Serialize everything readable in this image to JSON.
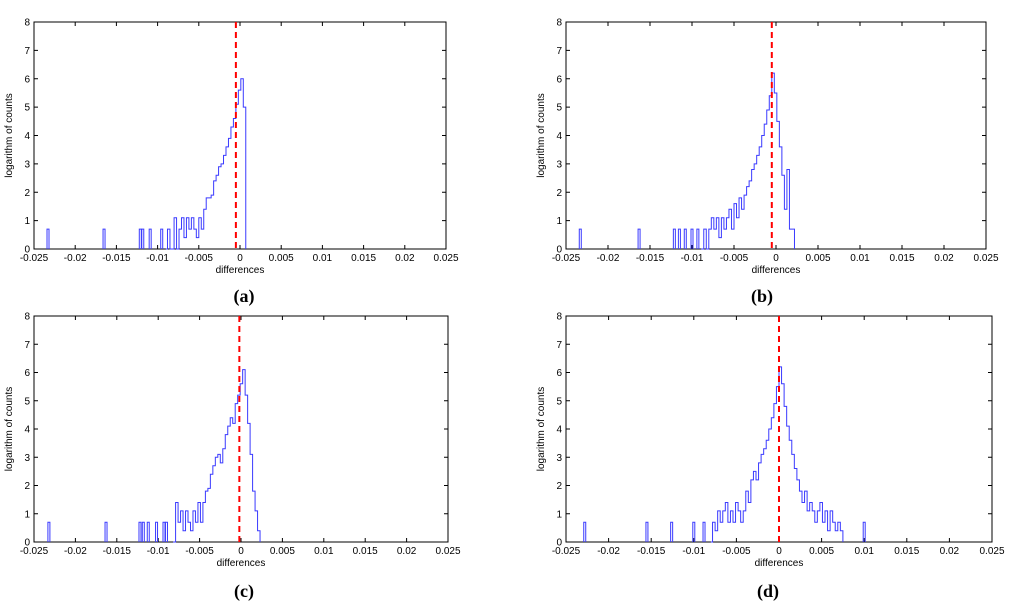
{
  "chart_data": [
    {
      "type": "histogram",
      "panel_label": "(a)",
      "xlabel": "differences",
      "ylabel": "logarithm of counts",
      "xlim": [
        -0.025,
        0.025
      ],
      "ylim": [
        0,
        8
      ],
      "xticks": [
        "-0.025",
        "-0.02",
        "-0.015",
        "-0.01",
        "-0.005",
        "0",
        "0.005",
        "0.01",
        "0.015",
        "0.02",
        "0.025"
      ],
      "yticks": [
        "0",
        "1",
        "2",
        "3",
        "4",
        "5",
        "6",
        "7",
        "8"
      ],
      "reference_line_x": -0.0005,
      "outliers": [
        [
          -0.0233,
          0.7
        ],
        [
          -0.0165,
          0.7
        ],
        [
          -0.0121,
          0.7
        ],
        [
          -0.0118,
          0.7
        ],
        [
          -0.0109,
          0.7
        ],
        [
          -0.0095,
          0.7
        ]
      ],
      "envelope": [
        [
          -0.009,
          0
        ],
        [
          -0.0088,
          0.7
        ],
        [
          -0.0085,
          0
        ],
        [
          -0.008,
          1.1
        ],
        [
          -0.0077,
          0
        ],
        [
          -0.0074,
          0.7
        ],
        [
          -0.0071,
          1.1
        ],
        [
          -0.0068,
          0.4
        ],
        [
          -0.0065,
          1.1
        ],
        [
          -0.0062,
          0.7
        ],
        [
          -0.0059,
          1.1
        ],
        [
          -0.0056,
          0.7
        ],
        [
          -0.0053,
          0.4
        ],
        [
          -0.005,
          1.1
        ],
        [
          -0.0047,
          0.7
        ],
        [
          -0.0044,
          1.4
        ],
        [
          -0.0041,
          1.8
        ],
        [
          -0.0038,
          1.8
        ],
        [
          -0.0035,
          1.9
        ],
        [
          -0.0032,
          2.4
        ],
        [
          -0.0029,
          2.6
        ],
        [
          -0.0026,
          2.9
        ],
        [
          -0.0023,
          3.0
        ],
        [
          -0.002,
          3.3
        ],
        [
          -0.0017,
          3.6
        ],
        [
          -0.0014,
          3.9
        ],
        [
          -0.0011,
          4.3
        ],
        [
          -0.0008,
          4.6
        ],
        [
          -0.0005,
          5.1
        ],
        [
          -0.0002,
          5.6
        ],
        [
          0.0001,
          6.0
        ],
        [
          0.0004,
          5.0
        ],
        [
          0.0007,
          0
        ]
      ]
    },
    {
      "type": "histogram",
      "panel_label": "(b)",
      "xlabel": "differences",
      "ylabel": "logarithm of counts",
      "xlim": [
        -0.025,
        0.025
      ],
      "ylim": [
        0,
        8
      ],
      "xticks": [
        "-0.025",
        "-0.02",
        "-0.015",
        "-0.01",
        "-0.005",
        "0",
        "0.005",
        "0.01",
        "0.015",
        "0.02",
        "0.025"
      ],
      "yticks": [
        "0",
        "1",
        "2",
        "3",
        "4",
        "5",
        "6",
        "7",
        "8"
      ],
      "reference_line_x": -0.0005,
      "outliers": [
        [
          -0.0233,
          0.7
        ],
        [
          -0.0163,
          0.7
        ],
        [
          -0.0121,
          0.7
        ],
        [
          -0.0115,
          0.7
        ],
        [
          -0.0108,
          0.7
        ],
        [
          -0.01,
          0.7
        ],
        [
          -0.0093,
          0.7
        ]
      ],
      "envelope": [
        [
          -0.0089,
          0
        ],
        [
          -0.0086,
          0.7
        ],
        [
          -0.0083,
          0
        ],
        [
          -0.008,
          0.7
        ],
        [
          -0.0077,
          1.1
        ],
        [
          -0.0074,
          0.7
        ],
        [
          -0.0071,
          1.1
        ],
        [
          -0.0068,
          0.4
        ],
        [
          -0.0065,
          1.1
        ],
        [
          -0.0062,
          0.7
        ],
        [
          -0.0059,
          1.1
        ],
        [
          -0.0056,
          1.4
        ],
        [
          -0.0053,
          0.7
        ],
        [
          -0.005,
          1.6
        ],
        [
          -0.0047,
          1.1
        ],
        [
          -0.0044,
          1.8
        ],
        [
          -0.0041,
          1.4
        ],
        [
          -0.0038,
          1.9
        ],
        [
          -0.0035,
          2.2
        ],
        [
          -0.0032,
          2.4
        ],
        [
          -0.0029,
          2.8
        ],
        [
          -0.0026,
          3.0
        ],
        [
          -0.0023,
          3.3
        ],
        [
          -0.002,
          3.6
        ],
        [
          -0.0017,
          4.0
        ],
        [
          -0.0014,
          4.4
        ],
        [
          -0.0011,
          4.9
        ],
        [
          -0.0008,
          5.4
        ],
        [
          -0.0005,
          6.2
        ],
        [
          -0.0002,
          5.5
        ],
        [
          0.0001,
          4.5
        ],
        [
          0.0004,
          3.6
        ],
        [
          0.0007,
          2.6
        ],
        [
          0.001,
          1.4
        ],
        [
          0.0013,
          2.8
        ],
        [
          0.0016,
          0.7
        ],
        [
          0.0019,
          0.7
        ],
        [
          0.0022,
          0
        ]
      ]
    },
    {
      "type": "histogram",
      "panel_label": "(c)",
      "xlabel": "differences",
      "ylabel": "logarithm of counts",
      "xlim": [
        -0.025,
        0.025
      ],
      "ylim": [
        0,
        8
      ],
      "xticks": [
        "-0.025",
        "-0.02",
        "-0.015",
        "-0.01",
        "-0.005",
        "0",
        "0.005",
        "0.01",
        "0.015",
        "0.02",
        "0.025"
      ],
      "yticks": [
        "0",
        "1",
        "2",
        "3",
        "4",
        "5",
        "6",
        "7",
        "8"
      ],
      "reference_line_x": -0.0002,
      "outliers": [
        [
          -0.0232,
          0.7
        ],
        [
          -0.0163,
          0.7
        ],
        [
          -0.0122,
          0.7
        ],
        [
          -0.0118,
          0.7
        ],
        [
          -0.0112,
          0.7
        ],
        [
          -0.0102,
          0.7
        ],
        [
          -0.0093,
          0.7
        ],
        [
          -0.009,
          0.7
        ]
      ],
      "envelope": [
        [
          -0.0082,
          0
        ],
        [
          -0.0079,
          1.4
        ],
        [
          -0.0076,
          0.7
        ],
        [
          -0.0073,
          1.1
        ],
        [
          -0.007,
          0.4
        ],
        [
          -0.0067,
          1.1
        ],
        [
          -0.0064,
          0.7
        ],
        [
          -0.0061,
          0.4
        ],
        [
          -0.0058,
          1.1
        ],
        [
          -0.0055,
          0.7
        ],
        [
          -0.0052,
          1.4
        ],
        [
          -0.0049,
          0.7
        ],
        [
          -0.0046,
          1.4
        ],
        [
          -0.0043,
          1.8
        ],
        [
          -0.004,
          1.9
        ],
        [
          -0.0037,
          2.4
        ],
        [
          -0.0034,
          2.7
        ],
        [
          -0.0031,
          3.0
        ],
        [
          -0.0028,
          3.1
        ],
        [
          -0.0025,
          2.8
        ],
        [
          -0.0022,
          3.3
        ],
        [
          -0.0019,
          3.8
        ],
        [
          -0.0016,
          4.1
        ],
        [
          -0.0013,
          4.4
        ],
        [
          -0.001,
          4.2
        ],
        [
          -0.0007,
          4.9
        ],
        [
          -0.0004,
          5.2
        ],
        [
          -0.0001,
          5.6
        ],
        [
          0.0002,
          6.1
        ],
        [
          0.0005,
          5.2
        ],
        [
          0.0008,
          4.2
        ],
        [
          0.0011,
          3.1
        ],
        [
          0.0014,
          1.8
        ],
        [
          0.0017,
          1.1
        ],
        [
          0.002,
          0.4
        ],
        [
          0.0023,
          0
        ]
      ]
    },
    {
      "type": "histogram",
      "panel_label": "(d)",
      "xlabel": "differences",
      "ylabel": "logarithm of counts",
      "xlim": [
        -0.025,
        0.025
      ],
      "ylim": [
        0,
        8
      ],
      "xticks": [
        "-0.025",
        "-0.02",
        "-0.015",
        "-0.01",
        "-0.005",
        "0",
        "0.005",
        "0.01",
        "0.015",
        "0.02",
        "0.025"
      ],
      "yticks": [
        "0",
        "1",
        "2",
        "3",
        "4",
        "5",
        "6",
        "7",
        "8"
      ],
      "reference_line_x": 0.0,
      "outliers": [
        [
          -0.0228,
          0.7
        ],
        [
          -0.0155,
          0.7
        ],
        [
          -0.0126,
          0.7
        ],
        [
          -0.01,
          0.7
        ],
        [
          -0.0088,
          0.7
        ],
        [
          0.01,
          0.7
        ]
      ],
      "envelope": [
        [
          -0.008,
          0
        ],
        [
          -0.0078,
          0.7
        ],
        [
          -0.0075,
          0.4
        ],
        [
          -0.0072,
          1.1
        ],
        [
          -0.0069,
          0.7
        ],
        [
          -0.0066,
          1.1
        ],
        [
          -0.0063,
          1.4
        ],
        [
          -0.006,
          0.7
        ],
        [
          -0.0057,
          1.1
        ],
        [
          -0.0054,
          0.7
        ],
        [
          -0.0051,
          1.4
        ],
        [
          -0.0048,
          1.1
        ],
        [
          -0.0045,
          0.7
        ],
        [
          -0.0042,
          1.1
        ],
        [
          -0.0039,
          1.8
        ],
        [
          -0.0036,
          1.4
        ],
        [
          -0.0033,
          2.2
        ],
        [
          -0.003,
          2.5
        ],
        [
          -0.0027,
          2.2
        ],
        [
          -0.0024,
          2.8
        ],
        [
          -0.0021,
          3.1
        ],
        [
          -0.0018,
          3.3
        ],
        [
          -0.0015,
          3.6
        ],
        [
          -0.0012,
          4.0
        ],
        [
          -0.0009,
          4.4
        ],
        [
          -0.0006,
          4.9
        ],
        [
          -0.0003,
          5.5
        ],
        [
          0.0,
          6.2
        ],
        [
          0.0003,
          5.6
        ],
        [
          0.0006,
          4.8
        ],
        [
          0.0009,
          4.1
        ],
        [
          0.0012,
          3.6
        ],
        [
          0.0015,
          3.1
        ],
        [
          0.0018,
          2.6
        ],
        [
          0.0021,
          2.2
        ],
        [
          0.0024,
          1.8
        ],
        [
          0.0027,
          1.4
        ],
        [
          0.003,
          1.8
        ],
        [
          0.0033,
          1.1
        ],
        [
          0.0036,
          1.4
        ],
        [
          0.0039,
          1.1
        ],
        [
          0.0042,
          0.7
        ],
        [
          0.0045,
          1.1
        ],
        [
          0.0048,
          1.4
        ],
        [
          0.0051,
          0.7
        ],
        [
          0.0054,
          1.1
        ],
        [
          0.0057,
          0.4
        ],
        [
          0.006,
          1.1
        ],
        [
          0.0063,
          0.7
        ],
        [
          0.0066,
          0.4
        ],
        [
          0.0069,
          0.7
        ],
        [
          0.0072,
          0.4
        ],
        [
          0.0075,
          0
        ]
      ]
    }
  ]
}
